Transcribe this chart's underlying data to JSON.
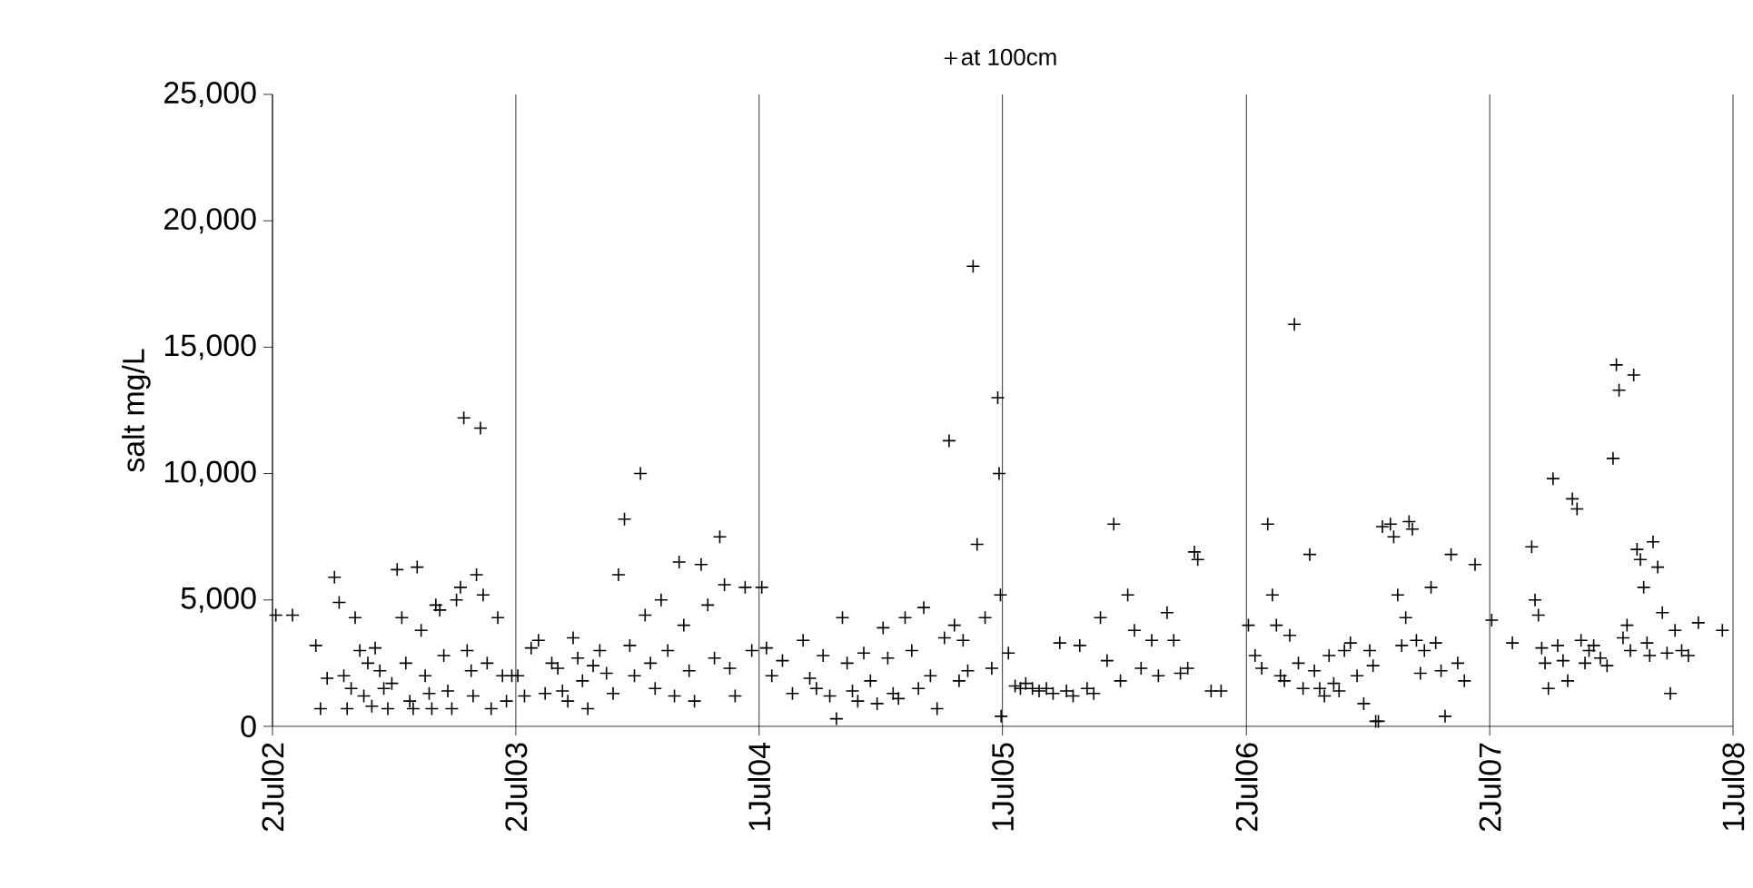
{
  "chart_data": {
    "type": "scatter",
    "ylabel": "salt mg/L",
    "xlim": [
      "2002-07-02",
      "2008-07-01"
    ],
    "xticks": [
      {
        "value": "2002-07-02",
        "label": "2Jul02"
      },
      {
        "value": "2003-07-02",
        "label": "2Jul03"
      },
      {
        "value": "2004-07-01",
        "label": "1Jul04"
      },
      {
        "value": "2005-07-01",
        "label": "1Jul05"
      },
      {
        "value": "2006-07-02",
        "label": "2Jul06"
      },
      {
        "value": "2007-07-02",
        "label": "2Jul07"
      },
      {
        "value": "2008-07-01",
        "label": "1Jul08"
      }
    ],
    "ylim": [
      0,
      25000
    ],
    "yticks": [
      0,
      {
        "value": 5000,
        "label": "5,000"
      },
      {
        "value": 10000,
        "label": "10,000"
      },
      {
        "value": 15000,
        "label": "15,000"
      },
      {
        "value": 20000,
        "label": "20,000"
      },
      {
        "value": 25000,
        "label": "25,000"
      }
    ],
    "grid": "x",
    "legend": "top",
    "marker": "cross",
    "series": [
      {
        "name": "at 100cm",
        "color": "#000000",
        "x": [
          "2002-07-07",
          "2002-08-01",
          "2002-09-05",
          "2002-09-12",
          "2002-09-22",
          "2002-10-03",
          "2002-10-10",
          "2002-10-17",
          "2002-10-22",
          "2002-10-28",
          "2002-11-03",
          "2002-11-10",
          "2002-11-16",
          "2002-11-22",
          "2002-11-28",
          "2002-12-03",
          "2002-12-10",
          "2002-12-16",
          "2002-12-22",
          "2002-12-28",
          "2003-01-05",
          "2003-01-12",
          "2003-01-18",
          "2003-01-24",
          "2003-01-29",
          "2003-02-04",
          "2003-02-10",
          "2003-02-16",
          "2003-02-22",
          "2003-02-26",
          "2003-03-04",
          "2003-03-10",
          "2003-03-16",
          "2003-03-22",
          "2003-03-28",
          "2003-04-04",
          "2003-04-10",
          "2003-04-15",
          "2003-04-20",
          "2003-04-26",
          "2003-04-29",
          "2003-05-04",
          "2003-05-10",
          "2003-05-14",
          "2003-05-20",
          "2003-05-26",
          "2003-06-05",
          "2003-06-12",
          "2003-06-18",
          "2003-06-26",
          "2003-07-05",
          "2003-07-15",
          "2003-07-25",
          "2003-08-05",
          "2003-08-15",
          "2003-08-25",
          "2003-09-03",
          "2003-09-10",
          "2003-09-18",
          "2003-09-26",
          "2003-10-03",
          "2003-10-10",
          "2003-10-18",
          "2003-10-26",
          "2003-11-05",
          "2003-11-15",
          "2003-11-25",
          "2003-12-03",
          "2003-12-12",
          "2003-12-20",
          "2003-12-27",
          "2004-01-05",
          "2004-01-12",
          "2004-01-20",
          "2004-01-27",
          "2004-02-05",
          "2004-02-15",
          "2004-02-25",
          "2004-03-03",
          "2004-03-10",
          "2004-03-18",
          "2004-03-26",
          "2004-04-05",
          "2004-04-15",
          "2004-04-25",
          "2004-05-03",
          "2004-05-10",
          "2004-05-18",
          "2004-05-26",
          "2004-06-10",
          "2004-06-20",
          "2004-07-05",
          "2004-07-12",
          "2004-07-20",
          "2004-08-05",
          "2004-08-20",
          "2004-09-05",
          "2004-09-15",
          "2004-09-25",
          "2004-10-05",
          "2004-10-15",
          "2004-10-25",
          "2004-11-03",
          "2004-11-10",
          "2004-11-18",
          "2004-11-26",
          "2004-12-05",
          "2004-12-15",
          "2004-12-25",
          "2005-01-03",
          "2005-01-10",
          "2005-01-18",
          "2005-01-26",
          "2005-02-05",
          "2005-02-15",
          "2005-02-25",
          "2005-03-05",
          "2005-03-15",
          "2005-03-25",
          "2005-04-05",
          "2005-04-12",
          "2005-04-20",
          "2005-04-27",
          "2005-05-03",
          "2005-05-10",
          "2005-05-18",
          "2005-05-24",
          "2005-06-05",
          "2005-06-15",
          "2005-06-24",
          "2005-06-26",
          "2005-06-28",
          "2005-06-29",
          "2005-07-10",
          "2005-07-20",
          "2005-07-28",
          "2005-08-05",
          "2005-08-15",
          "2005-08-25",
          "2005-09-05",
          "2005-09-15",
          "2005-09-25",
          "2005-10-05",
          "2005-10-15",
          "2005-10-25",
          "2005-11-05",
          "2005-11-15",
          "2005-11-25",
          "2005-12-05",
          "2005-12-15",
          "2005-12-25",
          "2006-01-05",
          "2006-01-15",
          "2006-01-25",
          "2006-02-10",
          "2006-02-20",
          "2006-03-05",
          "2006-03-15",
          "2006-03-25",
          "2006-04-05",
          "2006-04-15",
          "2006-04-20",
          "2006-05-10",
          "2006-05-25",
          "2006-07-05",
          "2006-07-15",
          "2006-07-25",
          "2006-08-03",
          "2006-08-10",
          "2006-08-16",
          "2006-08-22",
          "2006-08-28",
          "2006-09-05",
          "2006-09-12",
          "2006-09-18",
          "2006-09-25",
          "2006-10-05",
          "2006-10-12",
          "2006-10-20",
          "2006-10-27",
          "2006-11-03",
          "2006-11-10",
          "2006-11-18",
          "2006-11-26",
          "2006-12-05",
          "2006-12-15",
          "2006-12-25",
          "2007-01-03",
          "2007-01-08",
          "2007-01-12",
          "2007-01-16",
          "2007-01-22",
          "2007-02-03",
          "2007-02-08",
          "2007-02-14",
          "2007-02-20",
          "2007-02-26",
          "2007-03-03",
          "2007-03-08",
          "2007-03-14",
          "2007-03-20",
          "2007-03-26",
          "2007-04-05",
          "2007-04-12",
          "2007-04-20",
          "2007-04-26",
          "2007-05-05",
          "2007-05-15",
          "2007-05-25",
          "2007-06-10",
          "2007-07-05",
          "2007-08-05",
          "2007-09-03",
          "2007-09-08",
          "2007-09-13",
          "2007-09-18",
          "2007-09-23",
          "2007-09-28",
          "2007-10-05",
          "2007-10-12",
          "2007-10-20",
          "2007-10-27",
          "2007-11-03",
          "2007-11-10",
          "2007-11-16",
          "2007-11-22",
          "2007-11-28",
          "2007-12-05",
          "2007-12-15",
          "2007-12-25",
          "2008-01-03",
          "2008-01-08",
          "2008-01-12",
          "2008-01-18",
          "2008-01-24",
          "2008-01-29",
          "2008-02-03",
          "2008-02-08",
          "2008-02-13",
          "2008-02-18",
          "2008-02-23",
          "2008-02-27",
          "2008-03-03",
          "2008-03-10",
          "2008-03-17",
          "2008-03-24",
          "2008-03-29",
          "2008-04-05",
          "2008-04-15",
          "2008-04-25",
          "2008-05-10",
          "2008-06-15"
        ],
        "values": [
          4400,
          4400,
          3200,
          700,
          1900,
          5900,
          4900,
          2000,
          700,
          1500,
          4300,
          3000,
          1200,
          2500,
          800,
          3100,
          2200,
          1500,
          700,
          1700,
          6200,
          4300,
          2500,
          1000,
          700,
          6300,
          3800,
          2000,
          1300,
          700,
          4800,
          4600,
          2800,
          1400,
          700,
          5000,
          5500,
          12200,
          3000,
          2200,
          1200,
          6000,
          11800,
          5200,
          2500,
          700,
          4300,
          2000,
          1000,
          2000,
          2000,
          1200,
          3100,
          3400,
          1300,
          2500,
          2300,
          1400,
          1000,
          3500,
          2700,
          1800,
          700,
          2400,
          3000,
          2100,
          1300,
          6000,
          8200,
          3200,
          2000,
          10000,
          4400,
          2500,
          1500,
          5000,
          3000,
          1200,
          6500,
          4000,
          2200,
          1000,
          6400,
          4800,
          2700,
          7500,
          5600,
          2300,
          1200,
          5500,
          3000,
          5500,
          3100,
          2000,
          2600,
          1300,
          3400,
          1900,
          1500,
          2800,
          1200,
          300,
          4300,
          2500,
          1400,
          1000,
          2900,
          1800,
          900,
          3900,
          2700,
          1300,
          1100,
          4300,
          3000,
          1500,
          4700,
          2000,
          700,
          3500,
          11300,
          4000,
          1800,
          3400,
          2200,
          18200,
          7200,
          4300,
          2300,
          13000,
          10000,
          5200,
          400,
          2900,
          1600,
          1500,
          1700,
          1500,
          1400,
          1500,
          1300,
          3300,
          1400,
          1200,
          3200,
          1500,
          1300,
          4300,
          2600,
          8000,
          1800,
          5200,
          3800,
          2300,
          3400,
          2000,
          4500,
          3400,
          2100,
          2300,
          6900,
          6600,
          1400,
          1400,
          4000,
          2800,
          2300,
          8000,
          5200,
          4000,
          2000,
          1800,
          3600,
          15900,
          2500,
          1500,
          6800,
          2200,
          1500,
          1200,
          2800,
          1700,
          1400,
          3000,
          3300,
          2000,
          900,
          3000,
          2400,
          200,
          200,
          7900,
          8000,
          7500,
          5200,
          3200,
          4300,
          8100,
          7800,
          3400,
          2100,
          3000,
          5500,
          3300,
          2200,
          400,
          6800,
          2500,
          1800,
          6400,
          4200,
          3300,
          7100,
          5000,
          4400,
          3100,
          2500,
          1500,
          9800,
          3200,
          2600,
          1800,
          9000,
          8600,
          3400,
          2500,
          3000,
          3200,
          2700,
          2400,
          10600,
          14300,
          13300,
          3500,
          4000,
          3000,
          13900,
          7000,
          6600,
          5500,
          3300,
          2800,
          7300,
          6300,
          4500,
          2900,
          1300,
          3800,
          3000,
          2800,
          4100,
          3800
        ]
      }
    ]
  }
}
